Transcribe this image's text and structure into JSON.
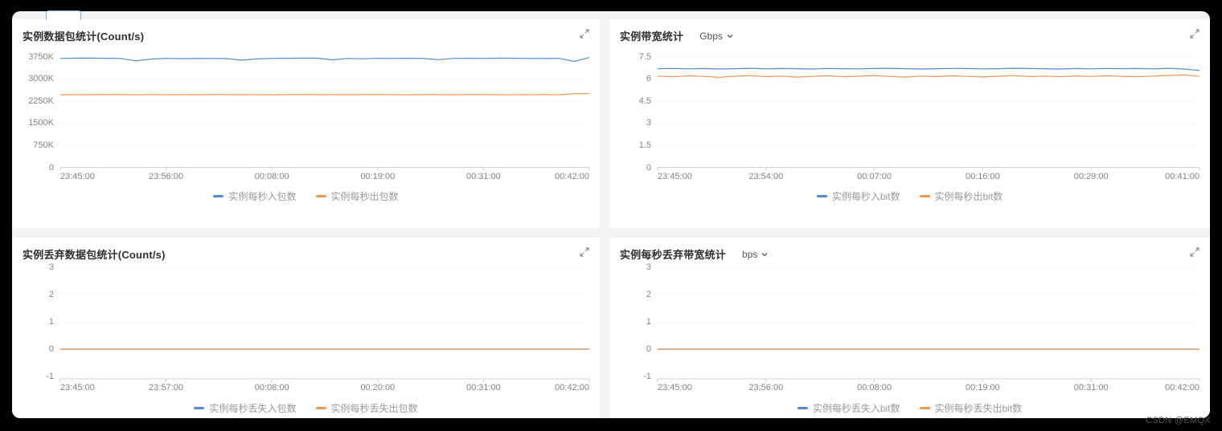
{
  "page": {
    "watermark": "CSDN @EMQX"
  },
  "colors": {
    "series_blue": "#4e8bd0",
    "series_orange": "#f09452",
    "gridline": "#e2e2e2",
    "axis": "#d2d2d2",
    "tick": "#cccccc",
    "label": "#828282",
    "legend_text": "#9a9a9a",
    "panel_bg": "#ffffff",
    "canvas_bg": "#f2f3f5"
  },
  "charts": [
    {
      "title": "实例数据包统计(Count/s)",
      "unit": "",
      "chart_data": {
        "type": "line",
        "ylim": [
          0,
          3886
        ],
        "y_ticks": [
          {
            "v": 3750,
            "label": "3750K"
          },
          {
            "v": 3000,
            "label": "3000K"
          },
          {
            "v": 2250,
            "label": "2250K"
          },
          {
            "v": 1500,
            "label": "1500K"
          },
          {
            "v": 750,
            "label": "750K"
          },
          {
            "v": 0,
            "label": "0"
          }
        ],
        "x_labels": [
          "23:45:00",
          "23:56:00",
          "00:08:00",
          "00:19:00",
          "00:31:00",
          "00:42:00"
        ],
        "value_unit": "K count/s",
        "series": [
          {
            "name": "实例每秒入包数",
            "color": "#4e8bd0",
            "values": [
              3700,
              3710,
              3712,
              3705,
              3700,
              3618,
              3680,
              3702,
              3692,
              3698,
              3700,
              3695,
              3640,
              3685,
              3700,
              3705,
              3710,
              3708,
              3655,
              3700,
              3690,
              3702,
              3700,
              3705,
              3698,
              3660,
              3700,
              3705,
              3700,
              3710,
              3705,
              3700,
              3698,
              3702,
              3600,
              3730
            ]
          },
          {
            "name": "实例每秒出包数",
            "color": "#f09452",
            "values": [
              2465,
              2472,
              2468,
              2475,
              2470,
              2466,
              2473,
              2469,
              2471,
              2467,
              2474,
              2470,
              2468,
              2472,
              2466,
              2470,
              2475,
              2469,
              2472,
              2468,
              2471,
              2474,
              2469,
              2466,
              2472,
              2470,
              2468,
              2473,
              2470,
              2467,
              2471,
              2469,
              2474,
              2468,
              2500,
              2510
            ]
          }
        ]
      }
    },
    {
      "title": "实例带宽统计",
      "unit": "Gbps",
      "chart_data": {
        "type": "line",
        "ylim": [
          0,
          7.77
        ],
        "y_ticks": [
          {
            "v": 7.5,
            "label": "7.5"
          },
          {
            "v": 6,
            "label": "6"
          },
          {
            "v": 4.5,
            "label": "4.5"
          },
          {
            "v": 3,
            "label": "3"
          },
          {
            "v": 1.5,
            "label": "1.5"
          },
          {
            "v": 0,
            "label": "0"
          }
        ],
        "x_labels": [
          "23:45:00",
          "23:54:00",
          "00:07:00",
          "00:16:00",
          "00:29:00",
          "00:41:00"
        ],
        "value_unit": "Gbps",
        "series": [
          {
            "name": "实例每秒入bit数",
            "color": "#4e8bd0",
            "values": [
              6.7,
              6.72,
              6.69,
              6.71,
              6.68,
              6.7,
              6.73,
              6.69,
              6.71,
              6.7,
              6.68,
              6.72,
              6.7,
              6.69,
              6.71,
              6.73,
              6.7,
              6.68,
              6.7,
              6.72,
              6.71,
              6.69,
              6.7,
              6.73,
              6.71,
              6.7,
              6.68,
              6.71,
              6.69,
              6.72,
              6.7,
              6.71,
              6.69,
              6.73,
              6.68,
              6.58
            ]
          },
          {
            "name": "实例每秒出bit数",
            "color": "#f09452",
            "values": [
              6.2,
              6.15,
              6.22,
              6.17,
              6.12,
              6.19,
              6.23,
              6.16,
              6.2,
              6.13,
              6.18,
              6.22,
              6.15,
              6.19,
              6.24,
              6.17,
              6.13,
              6.2,
              6.16,
              6.22,
              6.18,
              6.14,
              6.19,
              6.23,
              6.16,
              6.2,
              6.15,
              6.21,
              6.17,
              6.22,
              6.18,
              6.15,
              6.2,
              6.24,
              6.28,
              6.18
            ]
          }
        ]
      }
    },
    {
      "title": "实例丢弃数据包统计(Count/s)",
      "unit": "",
      "chart_data": {
        "type": "line",
        "ylim": [
          -1.09,
          3.12
        ],
        "y_ticks": [
          {
            "v": 3,
            "label": "3"
          },
          {
            "v": 2,
            "label": "2"
          },
          {
            "v": 1,
            "label": "1"
          },
          {
            "v": 0,
            "label": "0"
          },
          {
            "v": -1,
            "label": "-1"
          }
        ],
        "x_labels": [
          "23:45:00",
          "23:57:00",
          "00:08:00",
          "00:20:00",
          "00:31:00",
          "00:42:00"
        ],
        "value_unit": "count/s",
        "series": [
          {
            "name": "实例每秒丢失入包数",
            "color": "#4e8bd0",
            "values": [
              0,
              0,
              0,
              0,
              0,
              0,
              0,
              0,
              0,
              0,
              0,
              0,
              0,
              0,
              0,
              0,
              0,
              0,
              0,
              0,
              0,
              0,
              0,
              0,
              0,
              0,
              0,
              0,
              0,
              0,
              0,
              0,
              0,
              0,
              0,
              0
            ]
          },
          {
            "name": "实例每秒丢失出包数",
            "color": "#f09452",
            "values": [
              0,
              0,
              0,
              0,
              0,
              0,
              0,
              0,
              0,
              0,
              0,
              0,
              0,
              0,
              0,
              0,
              0,
              0,
              0,
              0,
              0,
              0,
              0,
              0,
              0,
              0,
              0,
              0,
              0,
              0,
              0,
              0,
              0,
              0,
              0,
              0
            ]
          }
        ]
      }
    },
    {
      "title": "实例每秒丢弃带宽统计",
      "unit": "bps",
      "chart_data": {
        "type": "line",
        "ylim": [
          -1.09,
          3.12
        ],
        "y_ticks": [
          {
            "v": 3,
            "label": "3"
          },
          {
            "v": 2,
            "label": "2"
          },
          {
            "v": 1,
            "label": "1"
          },
          {
            "v": 0,
            "label": "0"
          },
          {
            "v": -1,
            "label": "-1"
          }
        ],
        "x_labels": [
          "23:45:00",
          "23:56:00",
          "00:08:00",
          "00:19:00",
          "00:31:00",
          "00:42:00"
        ],
        "value_unit": "bps",
        "series": [
          {
            "name": "实例每秒丢失入bit数",
            "color": "#4e8bd0",
            "values": [
              0,
              0,
              0,
              0,
              0,
              0,
              0,
              0,
              0,
              0,
              0,
              0,
              0,
              0,
              0,
              0,
              0,
              0,
              0,
              0,
              0,
              0,
              0,
              0,
              0,
              0,
              0,
              0,
              0,
              0,
              0,
              0,
              0,
              0,
              0,
              0
            ]
          },
          {
            "name": "实例每秒丢失出bit数",
            "color": "#f09452",
            "values": [
              0,
              0,
              0,
              0,
              0,
              0,
              0,
              0,
              0,
              0,
              0,
              0,
              0,
              0,
              0,
              0,
              0,
              0,
              0,
              0,
              0,
              0,
              0,
              0,
              0,
              0,
              0,
              0,
              0,
              0,
              0,
              0,
              0,
              0,
              0,
              0
            ]
          }
        ]
      }
    }
  ]
}
